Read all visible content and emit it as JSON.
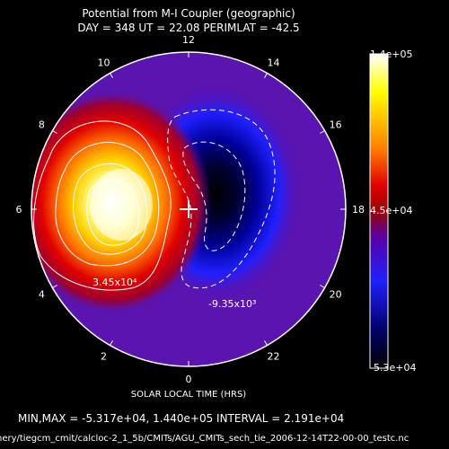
{
  "header": {
    "title": "Potential from M-I Coupler (geographic)",
    "subtitle": "DAY = 348  UT = 22.08  PERIMLAT = -42.5"
  },
  "footer": {
    "xlabel": "SOLAR LOCAL TIME (HRS)",
    "stats": "MIN,MAX = -5.317e+04, 1.440e+05 INTERVAL =  2.191e+04",
    "path": "nery/tiegcm_cmit/calcloc-2_1_5b/CMITs/AGU_CMITs_sech_tie_2006-12-14T22-00-00_testc.nc"
  },
  "chart_data": {
    "type": "polar-contour",
    "title": "Potential from M-I Coupler (geographic)",
    "subtitle": "DAY = 348  UT = 22.08  PERIMLAT = -42.5",
    "xlabel": "SOLAR LOCAL TIME (HRS)",
    "hour_ticks": [
      "0",
      "2",
      "4",
      "6",
      "8",
      "10",
      "12",
      "14",
      "16",
      "18",
      "20",
      "22"
    ],
    "min": -53170,
    "max": 144000,
    "interval": 21910,
    "perimeter_latitude": -42.5,
    "contour_labels": [
      "3.45x10⁴",
      "-9.35x10³"
    ],
    "colorbar": {
      "labels": [
        "1.4e+05",
        "4.5e+04",
        "-5.3e+04"
      ],
      "values": [
        140000,
        45000,
        -53000
      ],
      "colors": [
        "#ffffff",
        "#ffff00",
        "#ff8000",
        "#e00000",
        "#9a0000",
        "#5a00a0",
        "#2020ff",
        "#000066",
        "#000000"
      ]
    },
    "cells": [
      {
        "name": "positive-cell",
        "mlt": 6.25,
        "colat_fraction": 0.45,
        "peak": 144000
      },
      {
        "name": "negative-cell",
        "mlt": 15.4,
        "colat_fraction": 0.27,
        "peak": -53170
      }
    ],
    "colors": {
      "background": "#5a14b0",
      "axis": "#ffffff"
    }
  }
}
